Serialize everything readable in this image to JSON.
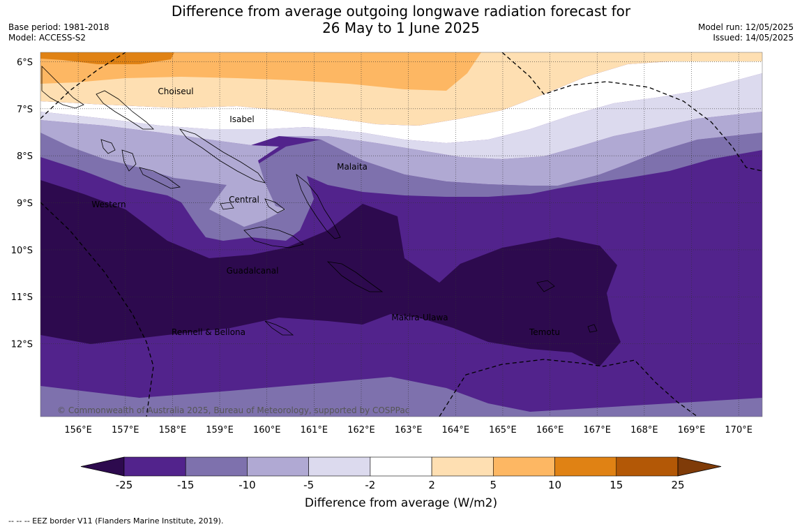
{
  "title": {
    "line1": "Difference from average outgoing longwave radiation forecast for",
    "line2": "26 May to 1 June 2025"
  },
  "meta_left": {
    "base_period": "Base period: 1981-2018",
    "model": "Model: ACCESS-S2"
  },
  "meta_right": {
    "model_run": "Model run: 12/05/2025",
    "issued": "Issued: 14/05/2025"
  },
  "map": {
    "lon_labels": [
      "156°E",
      "157°E",
      "158°E",
      "159°E",
      "160°E",
      "161°E",
      "162°E",
      "163°E",
      "164°E",
      "165°E",
      "166°E",
      "167°E",
      "168°E",
      "169°E",
      "170°E"
    ],
    "lat_labels": [
      "6°S",
      "7°S",
      "8°S",
      "9°S",
      "10°S",
      "11°S",
      "12°S"
    ],
    "lon_range": [
      155.2,
      170.5
    ],
    "lat_range": [
      -13.55,
      -5.8
    ],
    "regions": [
      "Choiseul",
      "Isabel",
      "Malaita",
      "Western",
      "Central",
      "Guadalcanal",
      "Makira-Ulawa",
      "Rennell & Bellona",
      "Temotu"
    ],
    "copyright": "© Commonwealth of Australia 2025, Bureau of Meteorology, supported by COSPPac"
  },
  "colorbar": {
    "ticks": [
      "-25",
      "-15",
      "-10",
      "-5",
      "-2",
      "2",
      "5",
      "10",
      "15",
      "25"
    ],
    "colors": [
      "#2d0a4e",
      "#52238c",
      "#7e71ad",
      "#b0a9d3",
      "#dcdaee",
      "#ffffff",
      "#fedfb2",
      "#fdb763",
      "#e08214",
      "#b35806",
      "#7f3b08"
    ],
    "label": "Difference from average (W/m2)"
  },
  "footnote": "--  --  -- EEZ border V11 (Flanders Marine Institute, 2019)."
}
